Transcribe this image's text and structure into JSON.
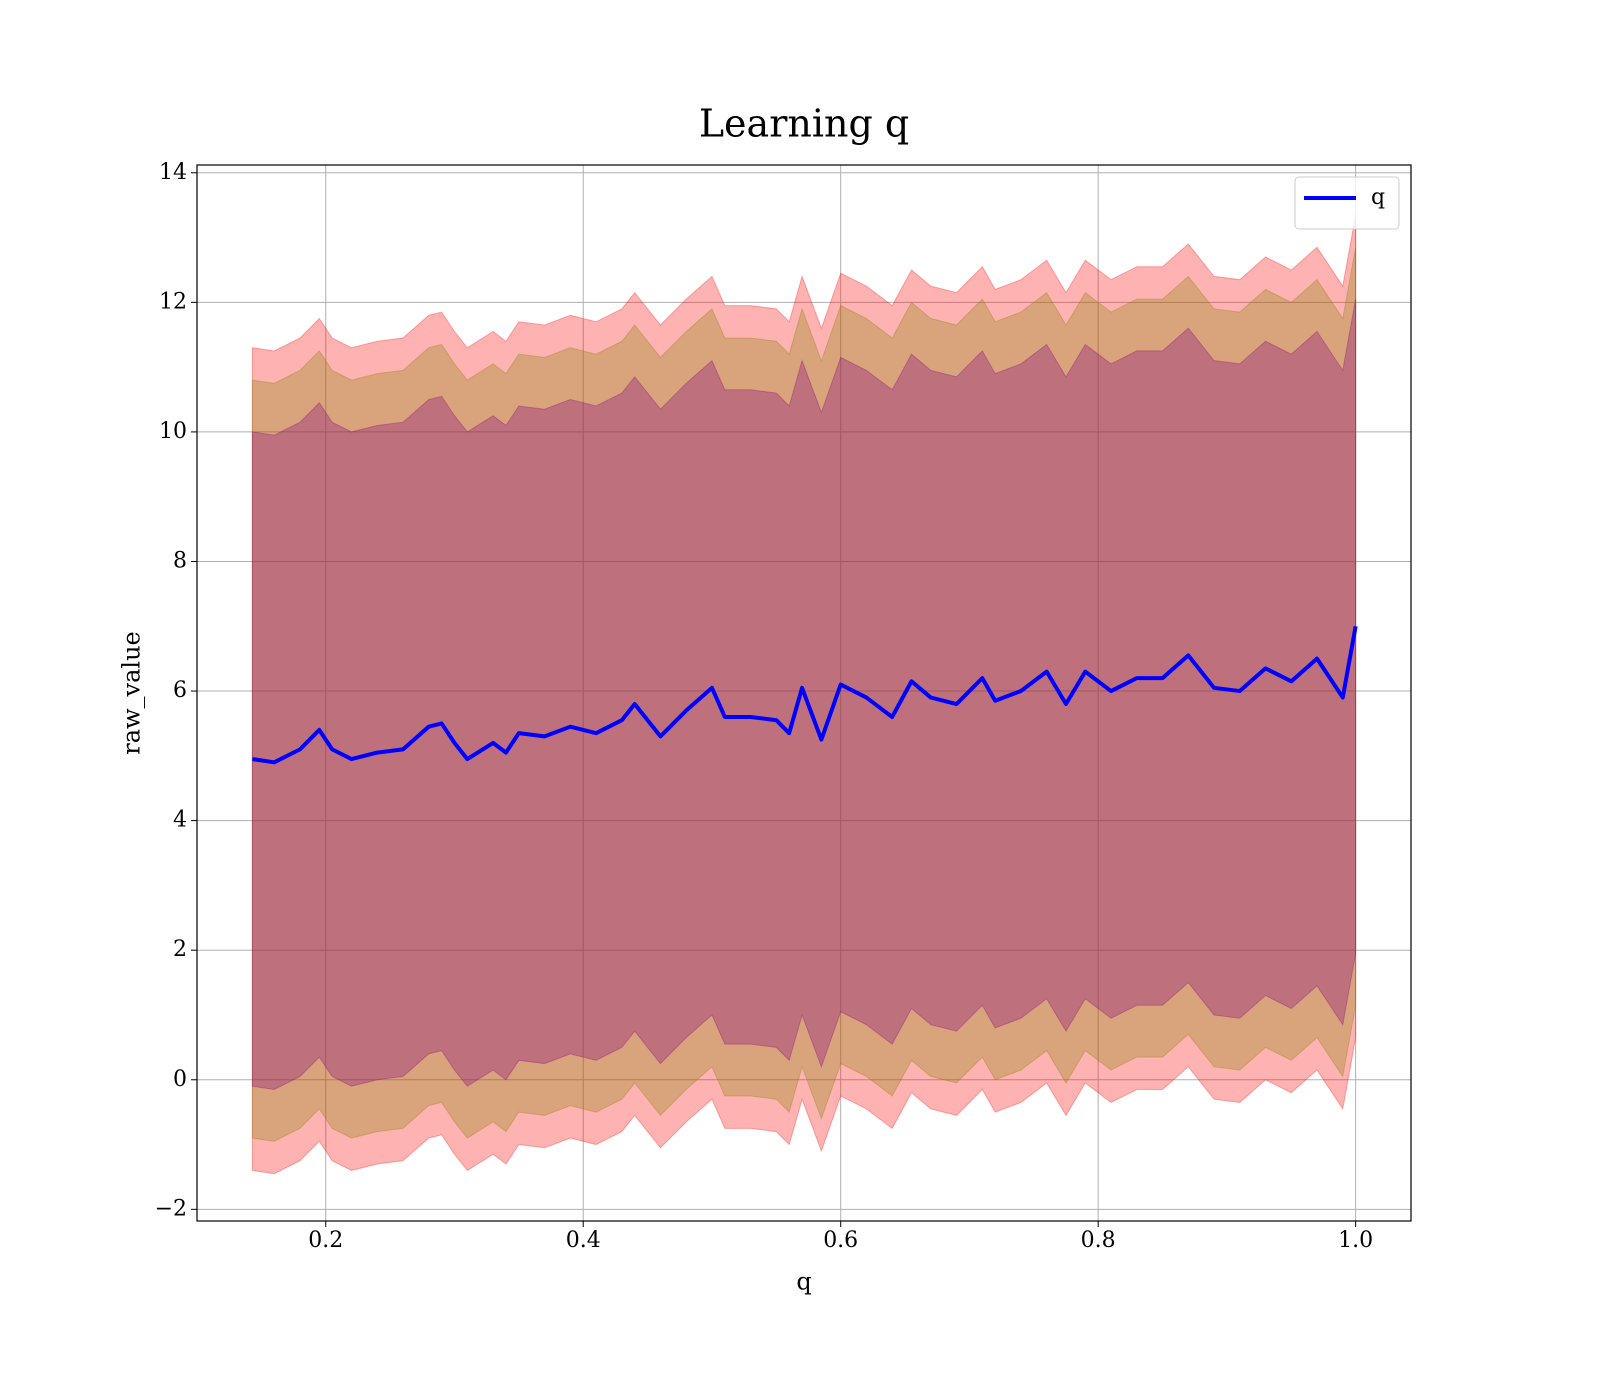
{
  "chart_data": {
    "type": "line",
    "title": "Learning q",
    "x_label": "q",
    "y_label": "raw_value",
    "xlim": [
      0.1,
      1.043
    ],
    "ylim": [
      -2.18,
      14.12
    ],
    "xticks": [
      0.2,
      0.4,
      0.6,
      0.8,
      {
        "value": 1,
        "label": "1.0"
      }
    ],
    "yticks": [
      {
        "value": -2,
        "label": "−2"
      },
      0,
      2,
      4,
      6,
      8,
      10,
      12,
      14
    ],
    "grid": true,
    "legend": "upper right",
    "x": [
      0.143,
      0.16,
      0.18,
      0.195,
      0.205,
      0.22,
      0.24,
      0.26,
      0.28,
      0.29,
      0.3,
      0.31,
      0.33,
      0.34,
      0.35,
      0.37,
      0.39,
      0.41,
      0.43,
      0.44,
      0.46,
      0.48,
      0.5,
      0.51,
      0.53,
      0.55,
      0.56,
      0.57,
      0.585,
      0.6,
      0.62,
      0.64,
      0.655,
      0.67,
      0.69,
      0.71,
      0.72,
      0.74,
      0.76,
      0.775,
      0.79,
      0.81,
      0.83,
      0.85,
      0.87,
      0.89,
      0.91,
      0.93,
      0.95,
      0.97,
      0.99,
      1.0
    ],
    "bands": [
      {
        "color": "#ff0000",
        "alpha": 0.3,
        "upper": [
          11.3,
          11.25,
          11.45,
          11.75,
          11.45,
          11.3,
          11.4,
          11.45,
          11.8,
          11.85,
          11.55,
          11.3,
          11.55,
          11.4,
          11.7,
          11.65,
          11.8,
          11.7,
          11.9,
          12.15,
          11.65,
          12.05,
          12.4,
          11.95,
          11.95,
          11.9,
          11.7,
          12.4,
          11.6,
          12.45,
          12.25,
          11.95,
          12.5,
          12.25,
          12.15,
          12.55,
          12.2,
          12.35,
          12.65,
          12.15,
          12.65,
          12.35,
          12.55,
          12.55,
          12.9,
          12.4,
          12.35,
          12.7,
          12.5,
          12.85,
          12.25,
          13.35
        ],
        "lower": [
          -1.4,
          -1.45,
          -1.25,
          -0.95,
          -1.25,
          -1.4,
          -1.3,
          -1.25,
          -0.9,
          -0.85,
          -1.15,
          -1.4,
          -1.15,
          -1.3,
          -1.0,
          -1.05,
          -0.9,
          -1.0,
          -0.8,
          -0.55,
          -1.05,
          -0.65,
          -0.3,
          -0.75,
          -0.75,
          -0.8,
          -1.0,
          -0.3,
          -1.1,
          -0.25,
          -0.45,
          -0.75,
          -0.2,
          -0.45,
          -0.55,
          -0.15,
          -0.5,
          -0.35,
          -0.05,
          -0.55,
          -0.05,
          -0.35,
          -0.15,
          -0.15,
          0.2,
          -0.3,
          -0.35,
          0,
          -0.2,
          0.15,
          -0.45,
          0.65
        ]
      },
      {
        "color": "#808000",
        "alpha": 0.3,
        "upper": [
          10.8,
          10.75,
          10.95,
          11.25,
          10.95,
          10.8,
          10.9,
          10.95,
          11.3,
          11.35,
          11.05,
          10.8,
          11.05,
          10.9,
          11.2,
          11.15,
          11.3,
          11.2,
          11.4,
          11.65,
          11.15,
          11.55,
          11.9,
          11.45,
          11.45,
          11.4,
          11.2,
          11.9,
          11.1,
          11.95,
          11.75,
          11.45,
          12.0,
          11.75,
          11.65,
          12.05,
          11.7,
          11.85,
          12.15,
          11.65,
          12.15,
          11.85,
          12.05,
          12.05,
          12.4,
          11.9,
          11.85,
          12.2,
          12.0,
          12.35,
          11.75,
          12.85
        ],
        "lower": [
          -0.9,
          -0.95,
          -0.75,
          -0.45,
          -0.75,
          -0.9,
          -0.8,
          -0.75,
          -0.4,
          -0.35,
          -0.65,
          -0.9,
          -0.65,
          -0.8,
          -0.5,
          -0.55,
          -0.4,
          -0.5,
          -0.3,
          -0.05,
          -0.55,
          -0.15,
          0.2,
          -0.25,
          -0.25,
          -0.3,
          -0.5,
          0.2,
          -0.6,
          0.25,
          0.05,
          -0.25,
          0.3,
          0.05,
          -0.05,
          0.35,
          0,
          0.15,
          0.45,
          -0.05,
          0.45,
          0.15,
          0.35,
          0.35,
          0.7,
          0.2,
          0.15,
          0.5,
          0.3,
          0.65,
          0.05,
          1.15
        ]
      },
      {
        "color": "#800080",
        "alpha": 0.3,
        "upper": [
          10.0,
          9.95,
          10.15,
          10.45,
          10.15,
          10.0,
          10.1,
          10.15,
          10.5,
          10.55,
          10.25,
          10.0,
          10.25,
          10.1,
          10.4,
          10.35,
          10.5,
          10.4,
          10.6,
          10.85,
          10.35,
          10.75,
          11.1,
          10.65,
          10.65,
          10.6,
          10.4,
          11.1,
          10.3,
          11.15,
          10.95,
          10.65,
          11.2,
          10.95,
          10.85,
          11.25,
          10.9,
          11.05,
          11.35,
          10.85,
          11.35,
          11.05,
          11.25,
          11.25,
          11.6,
          11.1,
          11.05,
          11.4,
          11.2,
          11.55,
          10.95,
          12.05
        ],
        "lower": [
          -0.1,
          -0.15,
          0.05,
          0.35,
          0.05,
          -0.1,
          0,
          0.05,
          0.4,
          0.45,
          0.15,
          -0.1,
          0.15,
          0,
          0.3,
          0.25,
          0.4,
          0.3,
          0.5,
          0.75,
          0.25,
          0.65,
          1.0,
          0.55,
          0.55,
          0.5,
          0.3,
          1.0,
          0.2,
          1.05,
          0.85,
          0.55,
          1.1,
          0.85,
          0.75,
          1.15,
          0.8,
          0.95,
          1.25,
          0.75,
          1.25,
          0.95,
          1.15,
          1.15,
          1.5,
          1.0,
          0.95,
          1.3,
          1.1,
          1.45,
          0.85,
          1.95
        ]
      }
    ],
    "series": [
      {
        "name": "q",
        "color": "#0000ff",
        "values": [
          4.95,
          4.9,
          5.1,
          5.4,
          5.1,
          4.95,
          5.05,
          5.1,
          5.45,
          5.5,
          5.2,
          4.95,
          5.2,
          5.05,
          5.35,
          5.3,
          5.45,
          5.35,
          5.55,
          5.8,
          5.3,
          5.7,
          6.05,
          5.6,
          5.6,
          5.55,
          5.35,
          6.05,
          5.25,
          6.1,
          5.9,
          5.6,
          6.15,
          5.9,
          5.8,
          6.2,
          5.85,
          6.0,
          6.3,
          5.8,
          6.3,
          6.0,
          6.2,
          6.2,
          6.55,
          6.05,
          6.0,
          6.35,
          6.15,
          6.5,
          5.9,
          7.0
        ]
      }
    ]
  }
}
